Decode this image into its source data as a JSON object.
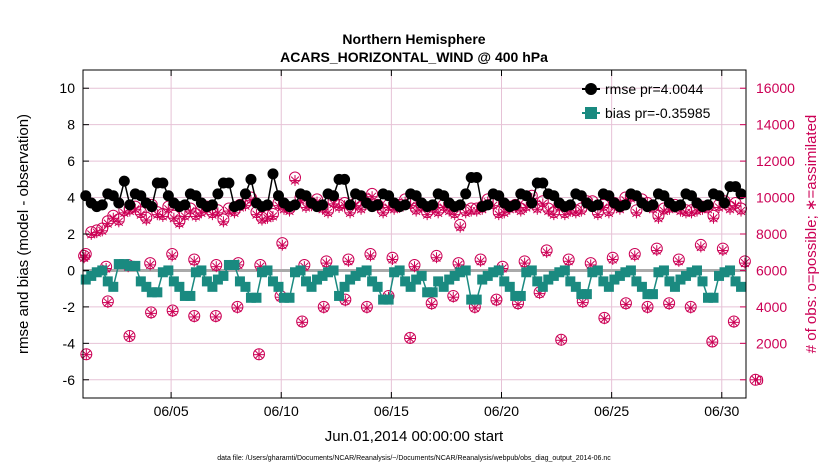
{
  "colors": {
    "rmse": "#000000",
    "bias": "#1a8a80",
    "obs": "#cc0055",
    "grid": "#e6c2d6",
    "zero": "#aaaaaa"
  },
  "chart_data": {
    "type": "line",
    "title": [
      "Northern Hemisphere",
      "ACARS_HORIZONTAL_WIND @ 400 hPa"
    ],
    "xlabel": "Jun.01,2014 00:00:00 start",
    "ylabel_left": "rmse and bias (model - observation)",
    "ylabel_right": "# of obs: o=possible; ∗=assimilated",
    "footnote": "data file: /Users/gharamti/Documents/NCAR/Reanalysis/~/Documents/NCAR/Reanalysis/webpub/obs_diag_output_2014-06.nc",
    "xlim": [
      1.0,
      31.1
    ],
    "ylim_left": [
      -7,
      11
    ],
    "ylim_right": [
      -1000,
      17000
    ],
    "x_ticks": [
      5,
      10,
      15,
      20,
      25,
      30
    ],
    "x_tick_labels": [
      "06/05",
      "06/10",
      "06/15",
      "06/20",
      "06/25",
      "06/30"
    ],
    "y_ticks_left": [
      -6,
      -4,
      -2,
      0,
      2,
      4,
      6,
      8,
      10
    ],
    "y_ticks_right": [
      0,
      2000,
      4000,
      6000,
      8000,
      10000,
      12000,
      14000,
      16000
    ],
    "y_tick_labels_right": [
      "0",
      "2000",
      "4000",
      "6000",
      "8000",
      "10000",
      "12000",
      "14000",
      "16000"
    ],
    "legend": [
      "rmse pr=4.0044",
      "bias pr=-0.35985"
    ],
    "rmse_cycle": [
      4.1,
      3.7,
      3.5,
      3.6,
      4.2
    ],
    "rmse_peaks": [
      [
        2.85,
        4.9
      ],
      [
        4.5,
        4.8
      ],
      [
        7.5,
        4.8
      ],
      [
        8.6,
        5.0
      ],
      [
        9.65,
        5.3
      ],
      [
        12.75,
        5.0
      ],
      [
        18.8,
        5.1
      ],
      [
        21.8,
        4.8
      ],
      [
        30.55,
        4.6
      ]
    ],
    "bias_cycle": [
      -0.5,
      -0.3,
      -0.1,
      0.0,
      -0.6,
      -0.9
    ],
    "bias_dips": [
      [
        4.2,
        -1.2
      ],
      [
        5.7,
        -1.4
      ],
      [
        8.7,
        -1.5
      ],
      [
        10.3,
        -1.5
      ],
      [
        12.6,
        -1.4
      ],
      [
        14.8,
        -1.6
      ],
      [
        16.7,
        -1.2
      ],
      [
        18.8,
        -1.6
      ],
      [
        20.7,
        -1.4
      ],
      [
        23.8,
        -1.3
      ],
      [
        26.7,
        -1.3
      ],
      [
        29.5,
        -1.5
      ]
    ],
    "bias_peaks": [
      [
        2.8,
        0.35
      ],
      [
        3.2,
        0.25
      ],
      [
        7.8,
        0.3
      ]
    ],
    "obs_high": [
      6900,
      8100,
      8200,
      8300,
      8700,
      9000,
      8800,
      9300,
      9400,
      9500,
      9200,
      8900,
      9600,
      9200,
      9100,
      9500,
      9000,
      8700,
      9100,
      9400,
      9100,
      9300,
      9500,
      9200,
      9300,
      8800,
      9400,
      9300,
      9600,
      9700,
      10000,
      9200,
      8900,
      9000,
      9100,
      9700,
      9500,
      9400,
      11100,
      10000,
      9600,
      9700,
      9900,
      9500,
      9300,
      9800,
      9600,
      9700,
      9300,
      9700,
      9500,
      9900,
      10200,
      9600,
      9300,
      9600,
      9500,
      9600,
      9900,
      9700,
      9400,
      9600,
      9200,
      9500,
      9300,
      9600,
      9400,
      9200,
      8500,
      9300,
      9400,
      9400,
      9500,
      9900,
      9700,
      9200,
      9300,
      9500,
      9600,
      9400,
      9600,
      10100,
      9500,
      9800,
      9400,
      9200,
      9600,
      9200,
      9400,
      9300,
      9400,
      9800,
      9800,
      9200,
      9600,
      9300,
      9700,
      9500,
      10000,
      10100,
      9300,
      9900,
      9700,
      9500,
      9000,
      9400,
      9500,
      9600,
      9400,
      9300,
      9300,
      9400,
      9500,
      9500,
      9000,
      9600,
      9800,
      9500,
      9700,
      9400
    ],
    "obs_mid": [
      6800,
      6200,
      6300,
      6400,
      6900,
      6600,
      6300,
      6400,
      6300,
      7500,
      6300,
      6500,
      6600,
      6900,
      6700,
      6300,
      6800,
      6400,
      6600,
      6200,
      6500,
      7100,
      6600,
      6400,
      6700,
      6900,
      7200,
      6600,
      7400,
      7200,
      6500
    ],
    "obs_low": [
      1400,
      4300,
      2400,
      3700,
      3800,
      3500,
      3500,
      4000,
      1400,
      4600,
      3200,
      4000,
      4400,
      4000,
      4600,
      2300,
      4200,
      4600,
      4000,
      4400,
      4200,
      4800,
      2200,
      4300,
      3400,
      4200,
      4000,
      4200,
      4000,
      2100,
      3200,
      0
    ]
  }
}
